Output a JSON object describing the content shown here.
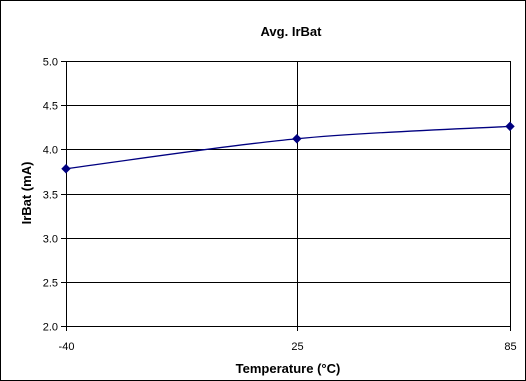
{
  "chart_data": {
    "type": "scatter",
    "title": "Avg. IrBat",
    "xlabel": "Temperature (°C)",
    "ylabel": "IrBat (mA)",
    "xlim": [
      -40,
      85
    ],
    "ylim": [
      2.0,
      5.0
    ],
    "x_ticks": [
      -40,
      25,
      85
    ],
    "x_tick_labels": [
      "-40",
      "25",
      "85"
    ],
    "y_ticks": [
      2.0,
      2.5,
      3.0,
      3.5,
      4.0,
      4.5,
      5.0
    ],
    "y_tick_labels": [
      "2.0",
      "2.5",
      "3.0",
      "3.5",
      "4.0",
      "4.5",
      "5.0"
    ],
    "grid": true,
    "legend": "none",
    "series": [
      {
        "color": "#000080",
        "marker": "diamond",
        "x": [
          -40,
          25,
          85
        ],
        "y": [
          3.78,
          4.12,
          4.26
        ]
      }
    ]
  }
}
